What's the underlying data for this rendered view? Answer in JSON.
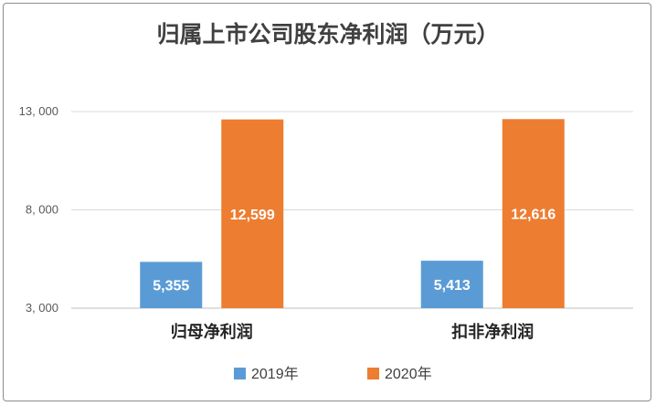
{
  "chart_data": {
    "type": "bar",
    "title": "归属上市公司股东净利润（万元）",
    "categories": [
      "归母净利润",
      "扣非净利润"
    ],
    "series": [
      {
        "name": "2019年",
        "values": [
          5355,
          5413
        ],
        "labels": [
          "5,355",
          "5,413"
        ],
        "color": "#5b9bd5"
      },
      {
        "name": "2020年",
        "values": [
          12599,
          12616
        ],
        "labels": [
          "12,599",
          "12,616"
        ],
        "color": "#ed7d31"
      }
    ],
    "yticks": [
      3000,
      8000,
      13000
    ],
    "ytick_labels": [
      "3, 000",
      "8, 000",
      "13, 000"
    ],
    "ylim": [
      3000,
      13000
    ],
    "grid": true,
    "legend": "bottom"
  }
}
